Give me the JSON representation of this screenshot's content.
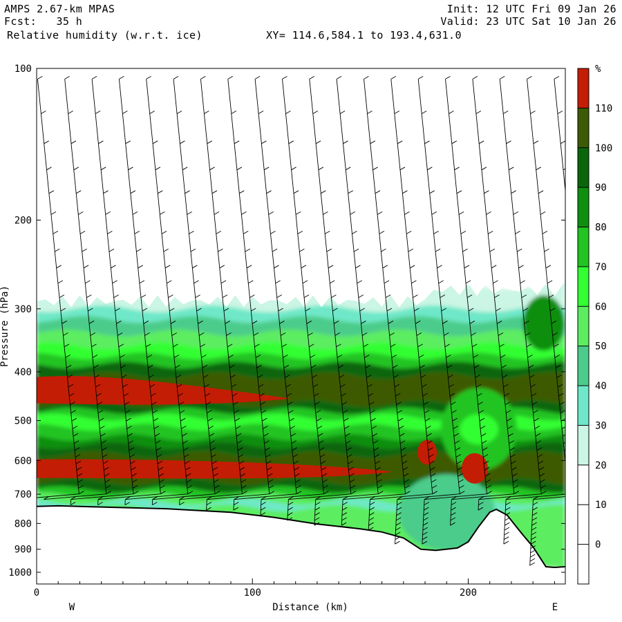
{
  "header": {
    "model": "AMPS 2.67-km MPAS",
    "forecast": "Fcst:   35 h",
    "init": "Init: 12 UTC Fri 09 Jan 26",
    "valid": "Valid: 23 UTC Sat 10 Jan 26",
    "field": "Relative humidity (w.r.t. ice)",
    "xy": "XY= 114.6,584.1 to 193.4,631.0"
  },
  "chart_data": {
    "type": "heatmap",
    "title": "Relative humidity (w.r.t. ice)",
    "xlabel": "Distance (km)",
    "ylabel": "Pressure (hPa)",
    "xlim": [
      0,
      245
    ],
    "ylim": [
      1055,
      100
    ],
    "y_scale": "log",
    "x_ticks": [
      0,
      100,
      200
    ],
    "y_ticks": [
      100,
      200,
      300,
      400,
      500,
      600,
      700,
      800,
      900,
      1000
    ],
    "end_labels": {
      "left": "W",
      "right": "E"
    },
    "colorbar": {
      "unit": "%",
      "levels": [
        0,
        10,
        20,
        30,
        40,
        50,
        60,
        70,
        80,
        90,
        100,
        110
      ],
      "colors": [
        "#ffffff",
        "#ffffff",
        "#ffffff",
        "#cbf5e4",
        "#6ee8c8",
        "#4ccc8a",
        "#5ced60",
        "#33ff33",
        "#22c422",
        "#0f8f0f",
        "#0b660b",
        "#3d5a06",
        "#c41d05"
      ]
    },
    "moist_layer_top_hPa": 290,
    "rh_bands": [
      {
        "p": [
          290,
          320
        ],
        "rh": "30-60"
      },
      {
        "p": [
          320,
          380
        ],
        "rh": "60-90"
      },
      {
        "p": [
          380,
          470
        ],
        "rh": "100-110+",
        "maxima": "west of 115 km near 420-460 hPa"
      },
      {
        "p": [
          470,
          560
        ],
        "rh": "70-90"
      },
      {
        "p": [
          560,
          680
        ],
        "rh": "100-110+",
        "maxima": "near 620 hPa, 0-165 km; near 570 hPa at 180 km; near 620 hPa at 203 km"
      },
      {
        "p": [
          680,
          760
        ],
        "rh": "40-70"
      }
    ],
    "terrain_surface_hPa": {
      "x": [
        0,
        10,
        30,
        60,
        90,
        110,
        130,
        150,
        160,
        170,
        178,
        185,
        195,
        200,
        205,
        210,
        213,
        218,
        225,
        230,
        236,
        240,
        245
      ],
      "p": [
        740,
        738,
        742,
        748,
        760,
        778,
        802,
        820,
        832,
        855,
        900,
        905,
        895,
        870,
        810,
        760,
        750,
        770,
        840,
        890,
        975,
        978,
        975
      ]
    }
  }
}
